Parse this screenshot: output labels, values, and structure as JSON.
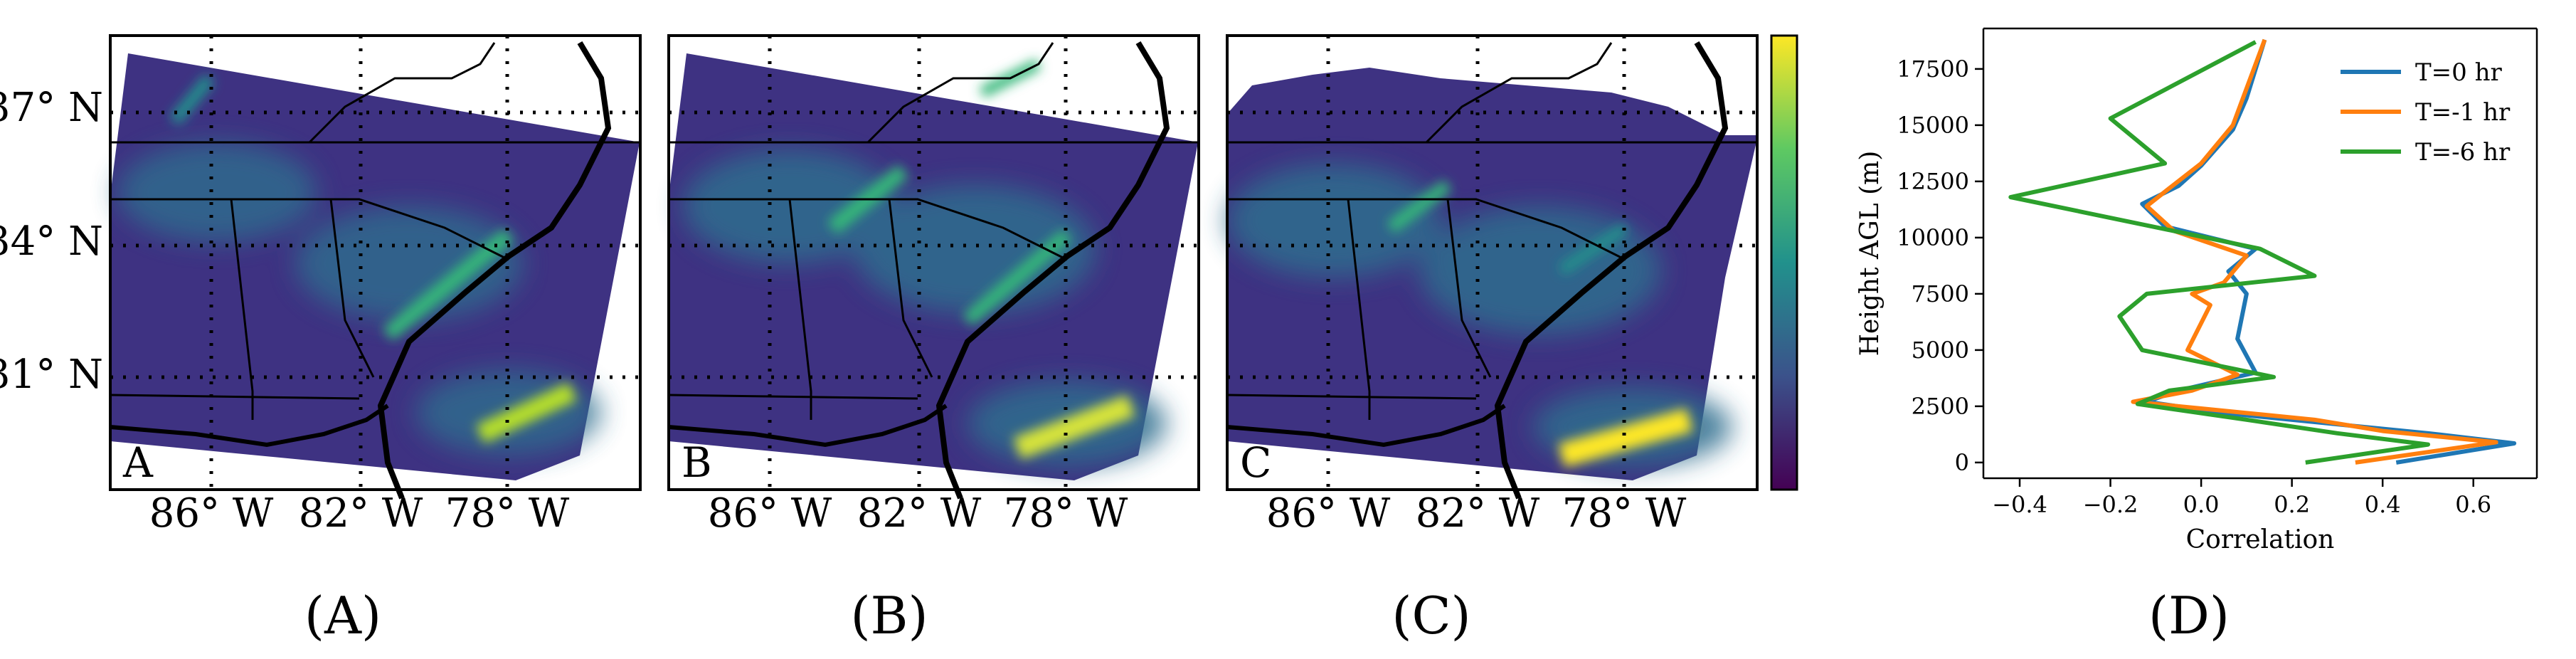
{
  "maps": {
    "lat_labels": [
      "37° N",
      "34° N",
      "31° N"
    ],
    "lon_labels": [
      "86° W",
      "82° W",
      "78° W"
    ],
    "panels": [
      {
        "letter": "A",
        "caption": "(A)"
      },
      {
        "letter": "B",
        "caption": "(B)"
      },
      {
        "letter": "C",
        "caption": "(C)"
      }
    ],
    "colorbar_colors": [
      "#440154",
      "#3b528b",
      "#21918c",
      "#5ec962",
      "#fde725"
    ],
    "field_colors": {
      "background": "#3e3282",
      "mid": "#2f6d8e",
      "streak": "#35b779",
      "hot": "#d6e33a",
      "state_line": "#000000",
      "coast": "#000000"
    }
  },
  "chart_data": [
    {
      "type": "line",
      "caption": "(D)",
      "xlabel": "Correlation",
      "ylabel": "Height AGL (m)",
      "xlim": [
        -0.48,
        0.74
      ],
      "ylim": [
        -700,
        19300
      ],
      "xticks": [
        -0.4,
        -0.2,
        0.0,
        0.2,
        0.4,
        0.6
      ],
      "xtick_labels": [
        "−0.4",
        "−0.2",
        "0.0",
        "0.2",
        "0.4",
        "0.6"
      ],
      "yticks": [
        0,
        2500,
        5000,
        7500,
        10000,
        12500,
        15000,
        17500
      ],
      "ytick_labels": [
        "0",
        "2500",
        "5000",
        "7500",
        "10000",
        "12500",
        "15000",
        "17500"
      ],
      "grid": false,
      "legend_position": "top-right",
      "series": [
        {
          "name": "T=0 hr",
          "color": "#1f77b4",
          "points": [
            [
              0.43,
              0
            ],
            [
              0.69,
              850
            ],
            [
              0.5,
              1300
            ],
            [
              0.3,
              1700
            ],
            [
              0.05,
              2200
            ],
            [
              -0.12,
              2700
            ],
            [
              -0.05,
              3200
            ],
            [
              0.12,
              4000
            ],
            [
              0.08,
              5500
            ],
            [
              0.1,
              7500
            ],
            [
              0.06,
              8500
            ],
            [
              0.12,
              9500
            ],
            [
              -0.08,
              10500
            ],
            [
              -0.13,
              11500
            ],
            [
              -0.05,
              12300
            ],
            [
              0.0,
              13200
            ],
            [
              0.07,
              14800
            ],
            [
              0.1,
              16200
            ],
            [
              0.14,
              18800
            ]
          ]
        },
        {
          "name": "T=-1 hr",
          "color": "#ff7f0e",
          "points": [
            [
              0.34,
              0
            ],
            [
              0.65,
              900
            ],
            [
              0.4,
              1400
            ],
            [
              0.25,
              1900
            ],
            [
              0.0,
              2400
            ],
            [
              -0.15,
              2700
            ],
            [
              -0.02,
              3200
            ],
            [
              0.08,
              3900
            ],
            [
              -0.03,
              5000
            ],
            [
              0.02,
              7000
            ],
            [
              -0.02,
              7500
            ],
            [
              0.05,
              8000
            ],
            [
              0.1,
              9200
            ],
            [
              -0.06,
              10300
            ],
            [
              -0.12,
              11400
            ],
            [
              -0.07,
              12200
            ],
            [
              0.0,
              13300
            ],
            [
              0.07,
              15000
            ],
            [
              0.14,
              18800
            ]
          ]
        },
        {
          "name": "T=-6 hr",
          "color": "#2ca02c",
          "points": [
            [
              0.23,
              0
            ],
            [
              0.5,
              800
            ],
            [
              0.3,
              1300
            ],
            [
              0.1,
              1900
            ],
            [
              -0.14,
              2600
            ],
            [
              -0.07,
              3200
            ],
            [
              0.16,
              3800
            ],
            [
              -0.13,
              5000
            ],
            [
              -0.18,
              6500
            ],
            [
              -0.12,
              7500
            ],
            [
              0.25,
              8300
            ],
            [
              0.13,
              9500
            ],
            [
              -0.42,
              11800
            ],
            [
              -0.08,
              13300
            ],
            [
              -0.2,
              15300
            ],
            [
              0.12,
              18700
            ]
          ]
        }
      ]
    }
  ]
}
